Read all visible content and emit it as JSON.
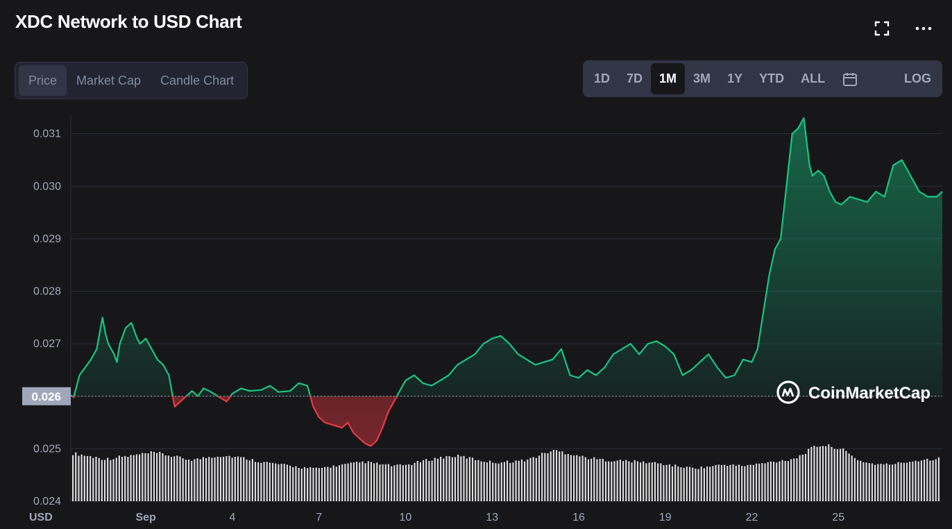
{
  "header": {
    "title": "XDC Network to USD Chart"
  },
  "tabs": [
    {
      "label": "Price",
      "active": true
    },
    {
      "label": "Market Cap",
      "active": false
    },
    {
      "label": "Candle Chart",
      "active": false
    }
  ],
  "ranges": [
    {
      "label": "1D",
      "active": false
    },
    {
      "label": "7D",
      "active": false
    },
    {
      "label": "1M",
      "active": true
    },
    {
      "label": "3M",
      "active": false
    },
    {
      "label": "1Y",
      "active": false
    },
    {
      "label": "YTD",
      "active": false
    },
    {
      "label": "ALL",
      "active": false
    }
  ],
  "log_label": "LOG",
  "icons": {
    "fullscreen": "fullscreen-icon",
    "more": "more-dots-icon",
    "calendar": "calendar-icon"
  },
  "watermark": "CoinMarketCap",
  "colors": {
    "up": "#16c784",
    "down": "#ea3943",
    "background": "#17171a"
  },
  "chart_data": {
    "type": "line",
    "currency_label": "USD",
    "ylim": [
      0.024,
      0.0313
    ],
    "yticks": [
      "0.024",
      "0.025",
      "0.026",
      "0.027",
      "0.028",
      "0.029",
      "0.030",
      "0.031"
    ],
    "ytick_values": [
      0.024,
      0.025,
      0.026,
      0.027,
      0.028,
      0.029,
      0.03,
      0.031
    ],
    "xticks": [
      "Sep",
      "4",
      "7",
      "10",
      "13",
      "16",
      "19",
      "22",
      "25"
    ],
    "xtick_days": [
      1,
      4,
      7,
      10,
      13,
      16,
      19,
      22,
      25
    ],
    "xlim_days": [
      -1.6,
      28.6
    ],
    "reference_value": 0.026,
    "current_label": "0.026",
    "grid": true,
    "series": [
      {
        "x": [
          -1.6,
          -1.5,
          -1.3,
          -1.1,
          -0.9,
          -0.7,
          -0.5,
          -0.4,
          -0.3,
          -0.1,
          0.0,
          0.1,
          0.3,
          0.5,
          0.7,
          0.8,
          1.0,
          1.2,
          1.4,
          1.6,
          1.8,
          2.0,
          2.2,
          2.4,
          2.6,
          2.8,
          3.0,
          3.2,
          3.5,
          3.8,
          4.0,
          4.3,
          4.6,
          5.0,
          5.3,
          5.6,
          6.0,
          6.3,
          6.6,
          6.8,
          7.0,
          7.2,
          7.5,
          7.8,
          8.0,
          8.2,
          8.4,
          8.6,
          8.8,
          9.0,
          9.2,
          9.4,
          9.6,
          9.8,
          10.0,
          10.3,
          10.6,
          10.9,
          11.2,
          11.5,
          11.8,
          12.1,
          12.4,
          12.7,
          13.0,
          13.3,
          13.6,
          13.9,
          14.2,
          14.5,
          14.8,
          15.1,
          15.4,
          15.7,
          16.0,
          16.3,
          16.6,
          16.9,
          17.2,
          17.5,
          17.8,
          18.1,
          18.4,
          18.7,
          19.0,
          19.3,
          19.6,
          19.9,
          20.2,
          20.5,
          20.8,
          21.1,
          21.4,
          21.7,
          22.0,
          22.2,
          22.4,
          22.6,
          22.8,
          23.0,
          23.2,
          23.4,
          23.6,
          23.8,
          24.0,
          24.1,
          24.3,
          24.5,
          24.7,
          24.9,
          25.1,
          25.4,
          25.7,
          26.0,
          26.3,
          26.6,
          26.9,
          27.2,
          27.5,
          27.8,
          28.1,
          28.4,
          28.6
        ],
        "values": [
          0.02602,
          0.02598,
          0.0264,
          0.02655,
          0.0267,
          0.0269,
          0.0275,
          0.0272,
          0.027,
          0.0268,
          0.02665,
          0.027,
          0.0273,
          0.0274,
          0.0271,
          0.027,
          0.0271,
          0.0269,
          0.0267,
          0.0266,
          0.0264,
          0.0258,
          0.0259,
          0.026,
          0.0261,
          0.026,
          0.02615,
          0.0261,
          0.026,
          0.0259,
          0.02605,
          0.02615,
          0.0261,
          0.02612,
          0.0262,
          0.02608,
          0.0261,
          0.02625,
          0.0262,
          0.0258,
          0.0256,
          0.0255,
          0.02545,
          0.0254,
          0.0255,
          0.0253,
          0.0252,
          0.0251,
          0.02505,
          0.02515,
          0.0254,
          0.0257,
          0.0259,
          0.0261,
          0.0263,
          0.0264,
          0.02625,
          0.0262,
          0.0263,
          0.0264,
          0.0266,
          0.0267,
          0.0268,
          0.027,
          0.0271,
          0.02715,
          0.027,
          0.0268,
          0.0267,
          0.0266,
          0.02665,
          0.0267,
          0.0269,
          0.0264,
          0.02635,
          0.0265,
          0.0264,
          0.02655,
          0.0268,
          0.0269,
          0.027,
          0.0268,
          0.027,
          0.02705,
          0.02695,
          0.0268,
          0.0264,
          0.0265,
          0.02665,
          0.0268,
          0.02655,
          0.02635,
          0.0264,
          0.0267,
          0.02665,
          0.0269,
          0.0276,
          0.0283,
          0.0288,
          0.029,
          0.03,
          0.031,
          0.0311,
          0.0313,
          0.0304,
          0.0302,
          0.0303,
          0.0302,
          0.0299,
          0.0297,
          0.02965,
          0.0298,
          0.02975,
          0.0297,
          0.0299,
          0.0298,
          0.0304,
          0.0305,
          0.0302,
          0.0299,
          0.0298,
          0.0298,
          0.0299
        ]
      }
    ],
    "volume_relative": [
      0.85,
      0.83,
      0.8,
      0.78,
      0.75,
      0.76,
      0.79,
      0.8,
      0.82,
      0.84,
      0.86,
      0.85,
      0.82,
      0.79,
      0.76,
      0.74,
      0.75,
      0.78,
      0.8,
      0.81,
      0.8,
      0.78,
      0.76,
      0.73,
      0.7,
      0.68,
      0.66,
      0.64,
      0.62,
      0.6,
      0.59,
      0.58,
      0.6,
      0.62,
      0.64,
      0.66,
      0.68,
      0.7,
      0.68,
      0.66,
      0.64,
      0.63,
      0.64,
      0.66,
      0.7,
      0.73,
      0.76,
      0.78,
      0.8,
      0.8,
      0.78,
      0.75,
      0.72,
      0.7,
      0.69,
      0.7,
      0.71,
      0.72,
      0.75,
      0.8,
      0.86,
      0.9,
      0.88,
      0.85,
      0.82,
      0.78,
      0.76,
      0.74,
      0.73,
      0.72,
      0.72,
      0.71,
      0.7,
      0.69,
      0.68,
      0.66,
      0.64,
      0.62,
      0.6,
      0.59,
      0.6,
      0.62,
      0.64,
      0.65,
      0.64,
      0.63,
      0.64,
      0.66,
      0.68,
      0.7,
      0.72,
      0.74,
      0.78,
      0.86,
      0.95,
      1.0,
      0.98,
      0.96,
      0.9,
      0.8,
      0.72,
      0.68,
      0.66,
      0.65,
      0.66,
      0.68,
      0.7,
      0.72,
      0.74,
      0.75,
      0.76
    ]
  }
}
